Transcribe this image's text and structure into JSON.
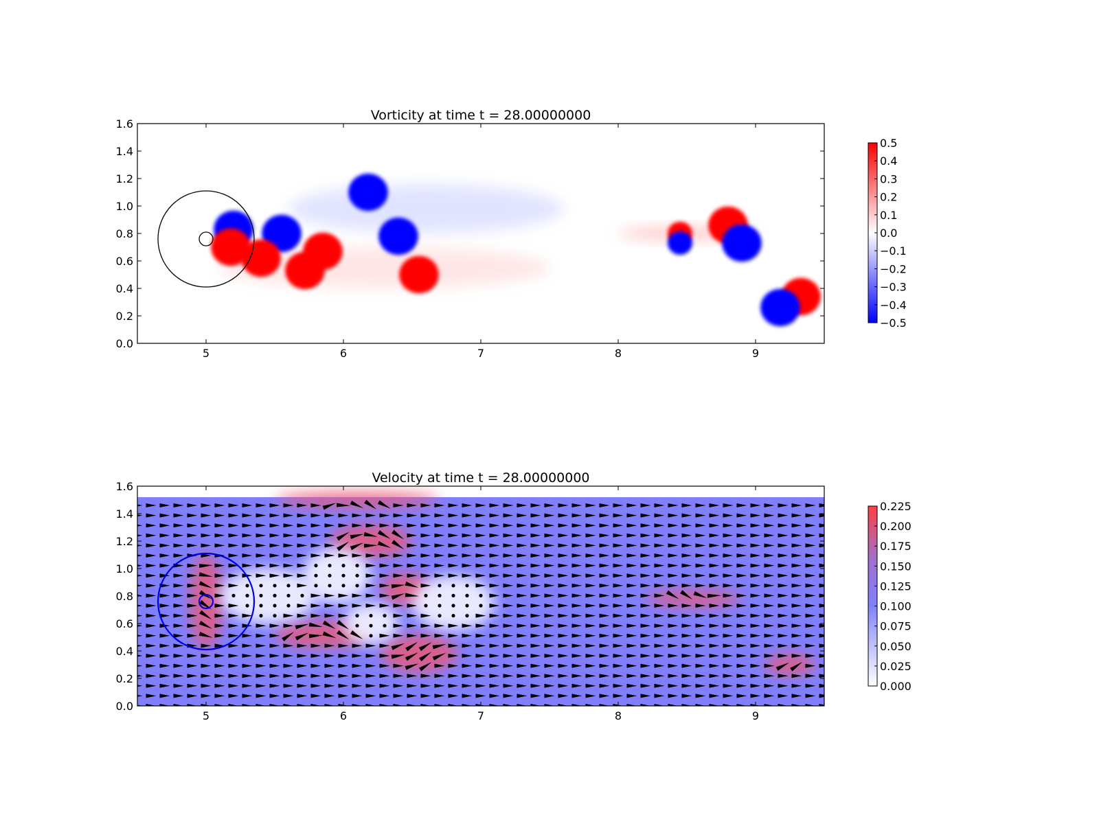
{
  "chart_data": [
    {
      "type": "heatmap",
      "title": "Vorticity at time t =    28.00000000",
      "xlabel": "",
      "ylabel": "",
      "xlim": [
        4.5,
        9.5
      ],
      "ylim": [
        0.0,
        1.6
      ],
      "xticks": [
        "5",
        "6",
        "7",
        "8",
        "9"
      ],
      "yticks": [
        "0.0",
        "0.2",
        "0.4",
        "0.6",
        "0.8",
        "1.0",
        "1.2",
        "1.4",
        "1.6"
      ],
      "colorbar": {
        "min": -0.5,
        "max": 0.5,
        "low_color": "#0000ff",
        "mid_color": "#ffffff",
        "high_color": "#ff0000",
        "ticks": [
          "−0.5",
          "−0.4",
          "−0.3",
          "−0.2",
          "−0.1",
          "0.0",
          "0.1",
          "0.2",
          "0.3",
          "0.4",
          "0.5"
        ]
      },
      "circles": [
        {
          "x": 5.0,
          "y": 0.76,
          "r": 0.35,
          "color": "#000000"
        },
        {
          "x": 5.0,
          "y": 0.76,
          "r": 0.05,
          "color": "#000000"
        }
      ],
      "vortices": [
        {
          "x": 6.18,
          "y": 1.1,
          "value": -0.5
        },
        {
          "x": 6.4,
          "y": 0.78,
          "value": -0.5
        },
        {
          "x": 5.55,
          "y": 0.8,
          "value": -0.5
        },
        {
          "x": 5.2,
          "y": 0.83,
          "value": -0.5
        },
        {
          "x": 5.85,
          "y": 0.67,
          "value": 0.5
        },
        {
          "x": 5.72,
          "y": 0.53,
          "value": 0.5
        },
        {
          "x": 5.4,
          "y": 0.62,
          "value": 0.5
        },
        {
          "x": 5.18,
          "y": 0.7,
          "value": 0.5
        },
        {
          "x": 6.55,
          "y": 0.5,
          "value": 0.5
        },
        {
          "x": 8.8,
          "y": 0.86,
          "value": 0.5
        },
        {
          "x": 8.9,
          "y": 0.73,
          "value": -0.5
        },
        {
          "x": 9.33,
          "y": 0.34,
          "value": 0.5
        },
        {
          "x": 9.18,
          "y": 0.26,
          "value": -0.5
        },
        {
          "x": 8.45,
          "y": 0.8,
          "value": 0.4
        },
        {
          "x": 8.45,
          "y": 0.73,
          "value": -0.4
        }
      ]
    },
    {
      "type": "heatmap",
      "title": "Velocity at time t =    28.00000000",
      "xlabel": "",
      "ylabel": "",
      "xlim": [
        4.5,
        9.5
      ],
      "ylim": [
        0.0,
        1.6
      ],
      "field_ymax": 1.52,
      "xticks": [
        "5",
        "6",
        "7",
        "8",
        "9"
      ],
      "yticks": [
        "0.0",
        "0.2",
        "0.4",
        "0.6",
        "0.8",
        "1.0",
        "1.2",
        "1.4",
        "1.6"
      ],
      "colorbar": {
        "min": 0.0,
        "max": 0.225,
        "low_color": "#ffffff",
        "mid_color": "#8080ff",
        "high_color": "#ff4040",
        "ticks": [
          "0.000",
          "0.025",
          "0.050",
          "0.075",
          "0.100",
          "0.125",
          "0.150",
          "0.175",
          "0.200",
          "0.225"
        ]
      },
      "background_speed": 0.1,
      "circles": [
        {
          "x": 5.0,
          "y": 0.76,
          "r": 0.35,
          "color": "#0000dd"
        },
        {
          "x": 5.0,
          "y": 0.76,
          "r": 0.05,
          "color": "#0000dd"
        }
      ],
      "slow_regions": [
        {
          "x": 5.45,
          "y": 0.8,
          "rx": 0.35,
          "ry": 0.2
        },
        {
          "x": 6.2,
          "y": 0.6,
          "rx": 0.2,
          "ry": 0.15
        },
        {
          "x": 6.8,
          "y": 0.75,
          "rx": 0.3,
          "ry": 0.2
        },
        {
          "x": 5.95,
          "y": 0.95,
          "rx": 0.25,
          "ry": 0.2
        }
      ],
      "fast_regions": [
        {
          "x": 6.2,
          "y": 1.2,
          "rx": 0.3,
          "ry": 0.12
        },
        {
          "x": 6.45,
          "y": 0.85,
          "rx": 0.18,
          "ry": 0.12
        },
        {
          "x": 6.55,
          "y": 0.38,
          "rx": 0.28,
          "ry": 0.14
        },
        {
          "x": 5.85,
          "y": 0.52,
          "rx": 0.35,
          "ry": 0.1
        },
        {
          "x": 5.0,
          "y": 0.76,
          "rx": 0.12,
          "ry": 0.35
        },
        {
          "x": 9.25,
          "y": 0.3,
          "rx": 0.18,
          "ry": 0.08
        },
        {
          "x": 8.55,
          "y": 0.78,
          "rx": 0.35,
          "ry": 0.06
        },
        {
          "x": 6.1,
          "y": 1.5,
          "rx": 0.6,
          "ry": 0.06
        }
      ]
    }
  ]
}
